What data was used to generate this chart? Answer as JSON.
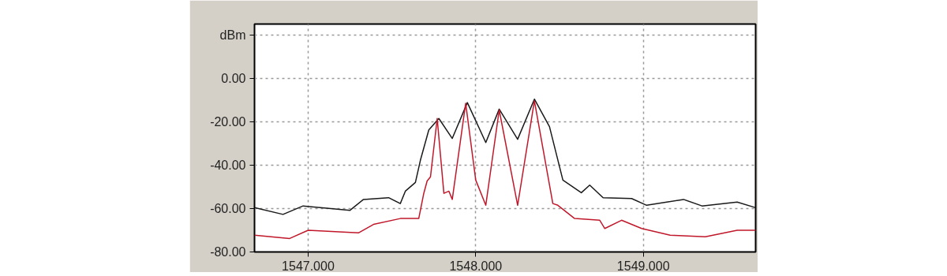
{
  "chart_data": {
    "type": "line",
    "xlim": [
      1546.68,
      1549.67
    ],
    "ylim": [
      -80,
      25
    ],
    "xticks": [
      {
        "value": 1547,
        "label": "1547.000"
      },
      {
        "value": 1548,
        "label": "1548.000"
      },
      {
        "value": 1549,
        "label": "1549.000"
      }
    ],
    "yticks": [
      {
        "value": -80,
        "label": "-80.00"
      },
      {
        "value": -60,
        "label": "-60.00"
      },
      {
        "value": -40,
        "label": "-40.00"
      },
      {
        "value": -20,
        "label": "-20.00"
      },
      {
        "value": 0,
        "label": "0.00"
      },
      {
        "value": 20,
        "label": "dBm"
      }
    ],
    "grid": true,
    "line_style": "solid",
    "marker": "none",
    "series": [
      {
        "color": "#1a1a1a",
        "x": [
          1546.68,
          1546.85,
          1546.97,
          1547.25,
          1547.33,
          1547.48,
          1547.55,
          1547.58,
          1547.64,
          1547.67,
          1547.72,
          1547.78,
          1547.86,
          1547.95,
          1548.06,
          1548.14,
          1548.25,
          1548.35,
          1548.44,
          1548.52,
          1548.63,
          1548.68,
          1548.76,
          1548.93,
          1549.02,
          1549.24,
          1549.35,
          1549.56,
          1549.67
        ],
        "values": [
          -59.6,
          -62.7,
          -58.8,
          -60.8,
          -55.8,
          -55,
          -57.7,
          -52,
          -48,
          -37.7,
          -23.8,
          -18.5,
          -27.7,
          -11.2,
          -29.6,
          -14.2,
          -28.1,
          -9.6,
          -22.3,
          -46.9,
          -52.7,
          -49.2,
          -55,
          -55.4,
          -58.5,
          -55.8,
          -58.8,
          -57,
          -59.6
        ]
      },
      {
        "color": "#c0182a",
        "x": [
          1546.68,
          1546.89,
          1547.0,
          1547.3,
          1547.39,
          1547.55,
          1547.66,
          1547.69,
          1547.71,
          1547.73,
          1547.77,
          1547.81,
          1547.84,
          1547.86,
          1547.94,
          1548.0,
          1548.06,
          1548.14,
          1548.25,
          1548.35,
          1548.46,
          1548.49,
          1548.59,
          1548.74,
          1548.77,
          1548.87,
          1548.99,
          1549.16,
          1549.37,
          1549.56,
          1549.67
        ],
        "values": [
          -72.3,
          -73.8,
          -70,
          -71.2,
          -67.3,
          -64.6,
          -64.6,
          -53,
          -47.3,
          -45.4,
          -18.5,
          -53,
          -52,
          -55.8,
          -11.5,
          -46.9,
          -58.5,
          -14.6,
          -58.5,
          -10.4,
          -57.7,
          -58.5,
          -64.6,
          -65.4,
          -69.2,
          -65.4,
          -69.2,
          -72.3,
          -73,
          -70,
          -70
        ]
      }
    ]
  }
}
